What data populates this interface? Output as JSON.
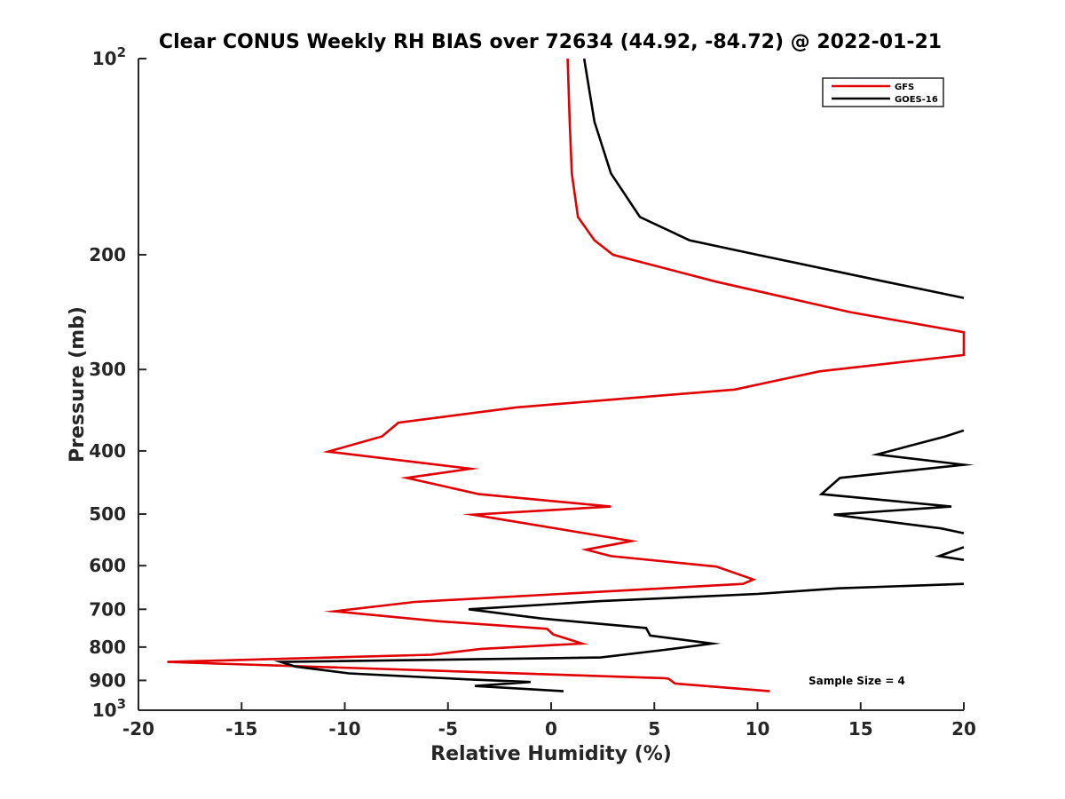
{
  "chart_data": {
    "type": "line",
    "title": "Clear CONUS Weekly RH BIAS over 72634 (44.92, -84.72) @ 2022-01-21",
    "xlabel": "Relative Humidity (%)",
    "ylabel": "Pressure (mb)",
    "xlim": [
      -20,
      20
    ],
    "ylim": [
      100,
      1000
    ],
    "yscale": "log",
    "yreversed": true,
    "grid": false,
    "legend_position": "top-right",
    "x_ticks": [
      -20,
      -15,
      -10,
      -5,
      0,
      5,
      10,
      15,
      20
    ],
    "x_tick_labels": [
      "-20",
      "-15",
      "-10",
      "-5",
      "0",
      "5",
      "10",
      "15",
      "20"
    ],
    "y_ticks": [
      {
        "value": 100,
        "label": "10",
        "sup": "2"
      },
      {
        "value": 200,
        "label": "200",
        "sup": ""
      },
      {
        "value": 300,
        "label": "300",
        "sup": ""
      },
      {
        "value": 400,
        "label": "400",
        "sup": ""
      },
      {
        "value": 500,
        "label": "500",
        "sup": ""
      },
      {
        "value": 600,
        "label": "600",
        "sup": ""
      },
      {
        "value": 700,
        "label": "700",
        "sup": ""
      },
      {
        "value": 800,
        "label": "800",
        "sup": ""
      },
      {
        "value": 900,
        "label": "900",
        "sup": ""
      },
      {
        "value": 1000,
        "label": "10",
        "sup": "3"
      }
    ],
    "series": [
      {
        "name": "GFS",
        "color": "#e00000",
        "points": [
          [
            0.8,
            100
          ],
          [
            0.9,
            125
          ],
          [
            1.0,
            150
          ],
          [
            1.3,
            175
          ],
          [
            2.1,
            190
          ],
          [
            3.0,
            200
          ],
          [
            8.0,
            220
          ],
          [
            14.5,
            245
          ],
          [
            20,
            263
          ],
          [
            20,
            285
          ],
          [
            13,
            302
          ],
          [
            8.9,
            322
          ],
          [
            -1.7,
            343
          ],
          [
            -7.4,
            362
          ],
          [
            -8.2,
            380
          ],
          [
            -10.8,
            401
          ],
          [
            -3.9,
            426
          ],
          [
            -7.0,
            440
          ],
          [
            -3.5,
            466
          ],
          [
            2.9,
            487
          ],
          [
            -3.8,
            501
          ],
          [
            3.9,
            550
          ],
          [
            1.7,
            567
          ],
          [
            2.9,
            580
          ],
          [
            8.0,
            602
          ],
          [
            9.8,
            630
          ],
          [
            9.3,
            640
          ],
          [
            -6.6,
            682
          ],
          [
            -10.5,
            705
          ],
          [
            -5.5,
            730
          ],
          [
            -0.2,
            750
          ],
          [
            0.1,
            765
          ],
          [
            1.5,
            790
          ],
          [
            -3.4,
            805
          ],
          [
            -5.8,
            822
          ],
          [
            -18.6,
            843
          ],
          [
            5.5,
            893
          ],
          [
            5.7,
            895
          ],
          [
            6.0,
            910
          ],
          [
            10.6,
            935
          ]
        ]
      },
      {
        "name": "GOES-16",
        "color": "#000000",
        "points": [
          [
            1.6,
            100
          ],
          [
            2.1,
            125
          ],
          [
            2.9,
            150
          ],
          [
            4.3,
            175
          ],
          [
            6.7,
            190
          ],
          [
            10.0,
            200
          ],
          [
            16.2,
            220
          ],
          [
            20,
            233
          ],
          [
            null,
            null
          ],
          [
            20,
            372
          ],
          [
            19.1,
            380
          ],
          [
            15.8,
            405
          ],
          [
            20,
            420
          ],
          [
            14.0,
            440
          ],
          [
            13.1,
            466
          ],
          [
            19.4,
            487
          ],
          [
            13.7,
            501
          ],
          [
            18.9,
            526
          ],
          [
            20,
            535
          ],
          [
            null,
            null
          ],
          [
            20,
            562
          ],
          [
            18.8,
            580
          ],
          [
            20,
            588
          ],
          [
            null,
            null
          ],
          [
            20,
            640
          ],
          [
            13.9,
            650
          ],
          [
            10.0,
            663
          ],
          [
            2.4,
            680
          ],
          [
            -4.0,
            700
          ],
          [
            -0.5,
            723
          ],
          [
            4.6,
            748
          ],
          [
            4.8,
            768
          ],
          [
            7.8,
            790
          ],
          [
            5.5,
            808
          ],
          [
            2.4,
            830
          ],
          [
            -13.1,
            843
          ],
          [
            -12.4,
            857
          ],
          [
            -9.8,
            878
          ],
          [
            -4.0,
            897
          ],
          [
            -1.0,
            905
          ],
          [
            -3.7,
            918
          ],
          [
            0.6,
            935
          ]
        ]
      }
    ],
    "legend": [
      {
        "name": "GFS",
        "color": "#e00000"
      },
      {
        "name": "GOES-16",
        "color": "#000000"
      }
    ],
    "annotation": "Sample Size = 4"
  }
}
